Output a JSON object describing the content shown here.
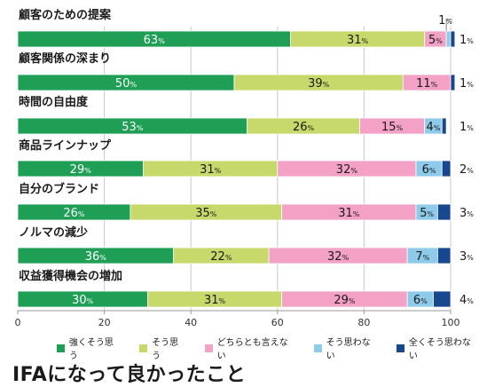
{
  "chart_data": {
    "type": "bar",
    "orientation": "horizontal",
    "stacked": true,
    "title": "IFAになって良かったこと",
    "categories": [
      "顧客のための提案",
      "顧客関係の深まり",
      "時間の自由度",
      "商品ラインナップ",
      "自分のブランド",
      "ノルマの減少",
      "収益獲得機会の増加"
    ],
    "series": [
      {
        "name": "強くそう思う",
        "values": [
          63,
          50,
          53,
          29,
          26,
          36,
          30
        ],
        "color": "#1f9e55"
      },
      {
        "name": "そう思う",
        "values": [
          31,
          39,
          26,
          31,
          35,
          22,
          31
        ],
        "color": "#c6d96a"
      },
      {
        "name": "どちらとも言えない",
        "values": [
          5,
          11,
          15,
          32,
          31,
          32,
          29
        ],
        "color": "#f3a1c4"
      },
      {
        "name": "そう思わない",
        "values": [
          1,
          0,
          4,
          6,
          5,
          7,
          6
        ],
        "color": "#8ecaea"
      },
      {
        "name": "全くそう思わない",
        "values": [
          1,
          1,
          1,
          2,
          3,
          3,
          4
        ],
        "color": "#17478c"
      }
    ],
    "data_labels": [
      {
        "labels": [
          "63%",
          "31%",
          "5%",
          "1%",
          "1%"
        ]
      },
      {
        "labels": [
          "50%",
          "39%",
          "11%",
          "",
          "1%"
        ]
      },
      {
        "labels": [
          "53%",
          "26%",
          "15%",
          "4%",
          "1%"
        ]
      },
      {
        "labels": [
          "29%",
          "31%",
          "32%",
          "6%",
          "2%"
        ]
      },
      {
        "labels": [
          "26%",
          "35%",
          "31%",
          "5%",
          "3%"
        ]
      },
      {
        "labels": [
          "36%",
          "22%",
          "32%",
          "7%",
          "3%"
        ]
      },
      {
        "labels": [
          "30%",
          "31%",
          "29%",
          "6%",
          "4%"
        ]
      }
    ],
    "xlim": [
      0,
      100
    ],
    "xticks": [
      "0",
      "20",
      "40",
      "60",
      "80",
      "100"
    ],
    "xlabel": "",
    "ylabel": "",
    "legend_position": "bottom",
    "grid": true
  }
}
